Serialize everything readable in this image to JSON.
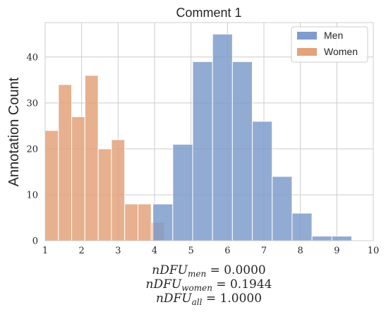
{
  "chart_data": {
    "type": "bar",
    "title": "Comment 1",
    "xlabel": "",
    "ylabel": "Annotation Count",
    "xlim": [
      1,
      10
    ],
    "ylim": [
      0,
      47.5
    ],
    "x_ticks": [
      1,
      2,
      3,
      4,
      5,
      6,
      7,
      8,
      9,
      10
    ],
    "y_ticks": [
      0,
      10,
      20,
      30,
      40
    ],
    "grid": true,
    "legend_position": "top-right",
    "bin_width": 0.5455,
    "series": [
      {
        "name": "Men",
        "color": "#7f9ccb",
        "bin_starts": [
          3.9545,
          4.5,
          5.0455,
          5.5909,
          6.1364,
          6.6818,
          7.2273,
          7.7727,
          8.3182,
          8.8636
        ],
        "values": [
          8,
          21,
          39,
          45,
          39,
          26,
          14,
          6,
          1,
          1
        ]
      },
      {
        "name": "Women",
        "color": "#e3a27a",
        "bin_starts": [
          1.0,
          1.3636,
          1.7273,
          2.0909,
          2.4545,
          2.8182,
          3.1818,
          3.5455,
          3.9091
        ],
        "bin_width": 0.3636,
        "values": [
          24,
          34,
          27,
          36,
          20,
          22,
          8,
          8,
          4
        ]
      }
    ],
    "annotations": [
      {
        "base": "nDFU",
        "sub": "men",
        "value": "= 0.0000"
      },
      {
        "base": "nDFU",
        "sub": "women",
        "value": "= 0.1944"
      },
      {
        "base": "nDFU",
        "sub": "all",
        "value": "= 1.0000"
      }
    ]
  }
}
